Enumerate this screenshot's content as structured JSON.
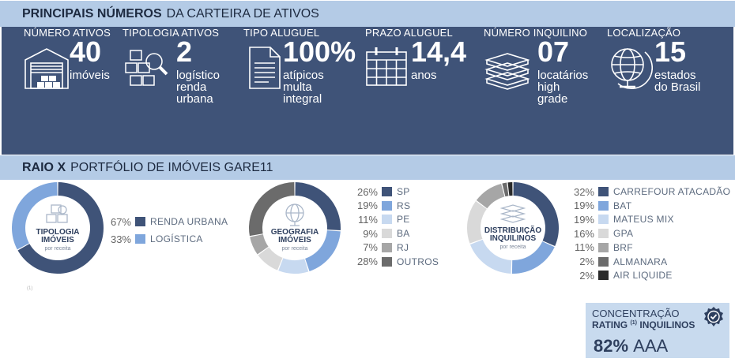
{
  "header": {
    "title_bold": "PRINCIPAIS NÚMEROS",
    "title_rest": "DA CARTEIRA DE ATIVOS"
  },
  "kpis": [
    {
      "label": "NÚMERO ATIVOS",
      "value": "40",
      "sub": [
        "imóveis"
      ],
      "icon": "warehouse-icon"
    },
    {
      "label": "TIPOLOGIA  ATIVOS",
      "value": "2",
      "sub": [
        "logístico",
        "renda",
        "urbana"
      ],
      "icon": "boxes-search-icon"
    },
    {
      "label": "TIPO ALUGUEL",
      "value": "100%",
      "sub": [
        "atípicos",
        "multa",
        "integral"
      ],
      "icon": "document-icon"
    },
    {
      "label": "PRAZO ALUGUEL",
      "value": "14,4",
      "sub": [
        "anos"
      ],
      "icon": "calendar-icon"
    },
    {
      "label": "NÚMERO INQUILINO",
      "value": "07",
      "sub": [
        "locatários",
        "high",
        "grade"
      ],
      "icon": "books-icon"
    },
    {
      "label": "LOCALIZAÇÃO",
      "value": "15",
      "sub": [
        "estados",
        "do Brasil"
      ],
      "icon": "globe-icon"
    }
  ],
  "section2": {
    "title_bold": "RAIO X",
    "title_rest": "PORTFÓLIO DE IMÓVEIS GARE11"
  },
  "colors": {
    "navy": "#3f5378",
    "dark_navy": "#2c3e5e",
    "blue": "#7fa6dc",
    "light_blue": "#c7d9f0"
  },
  "chart_data": [
    {
      "type": "pie",
      "title": "TIPOLOGIA IMÓVEIS",
      "subtitle": "por receita",
      "icon": "boxes-icon",
      "categories": [
        "RENDA URBANA",
        "LOGÍSTICA"
      ],
      "values": [
        67,
        33
      ],
      "labels": [
        "67%",
        "33%"
      ],
      "colors": [
        "#3f5378",
        "#7fa6dc"
      ]
    },
    {
      "type": "pie",
      "title": "GEOGRAFIA IMÓVEIS",
      "subtitle": "por receita",
      "icon": "globe-icon",
      "categories": [
        "SP",
        "RS",
        "PE",
        "BA",
        "RJ",
        "OUTROS"
      ],
      "values": [
        26,
        19,
        11,
        9,
        7,
        28
      ],
      "labels": [
        "26%",
        "19%",
        "11%",
        "9%",
        "7%",
        "28%"
      ],
      "colors": [
        "#3f5378",
        "#7fa6dc",
        "#c7d9f0",
        "#d9d9d9",
        "#a6a6a6",
        "#6b6b6b"
      ]
    },
    {
      "type": "pie",
      "title": "DISTRIBUIÇÃO INQUILINOS",
      "subtitle": "por receita",
      "icon": "books-icon",
      "categories": [
        "CARREFOUR ATACADÃO",
        "BAT",
        "MATEUS MIX",
        "GPA",
        "BRF",
        "ALMANARA",
        "AIR LIQUIDE"
      ],
      "values": [
        32,
        19,
        19,
        16,
        11,
        2,
        2
      ],
      "labels": [
        "32%",
        "19%",
        "19%",
        "16%",
        "11%",
        "2%",
        "2%"
      ],
      "colors": [
        "#3f5378",
        "#7fa6dc",
        "#c7d9f0",
        "#d9d9d9",
        "#a6a6a6",
        "#6b6b6b",
        "#2b2b2b"
      ]
    }
  ],
  "rating": {
    "line1": "CONCENTRAÇÃO",
    "line2a": "RATING",
    "line2sup": "(1)",
    "line2b": "INQUILINOS",
    "pct": "82%",
    "grade": "AAA",
    "icon": "check-seal-icon"
  },
  "footnote": "(1)"
}
